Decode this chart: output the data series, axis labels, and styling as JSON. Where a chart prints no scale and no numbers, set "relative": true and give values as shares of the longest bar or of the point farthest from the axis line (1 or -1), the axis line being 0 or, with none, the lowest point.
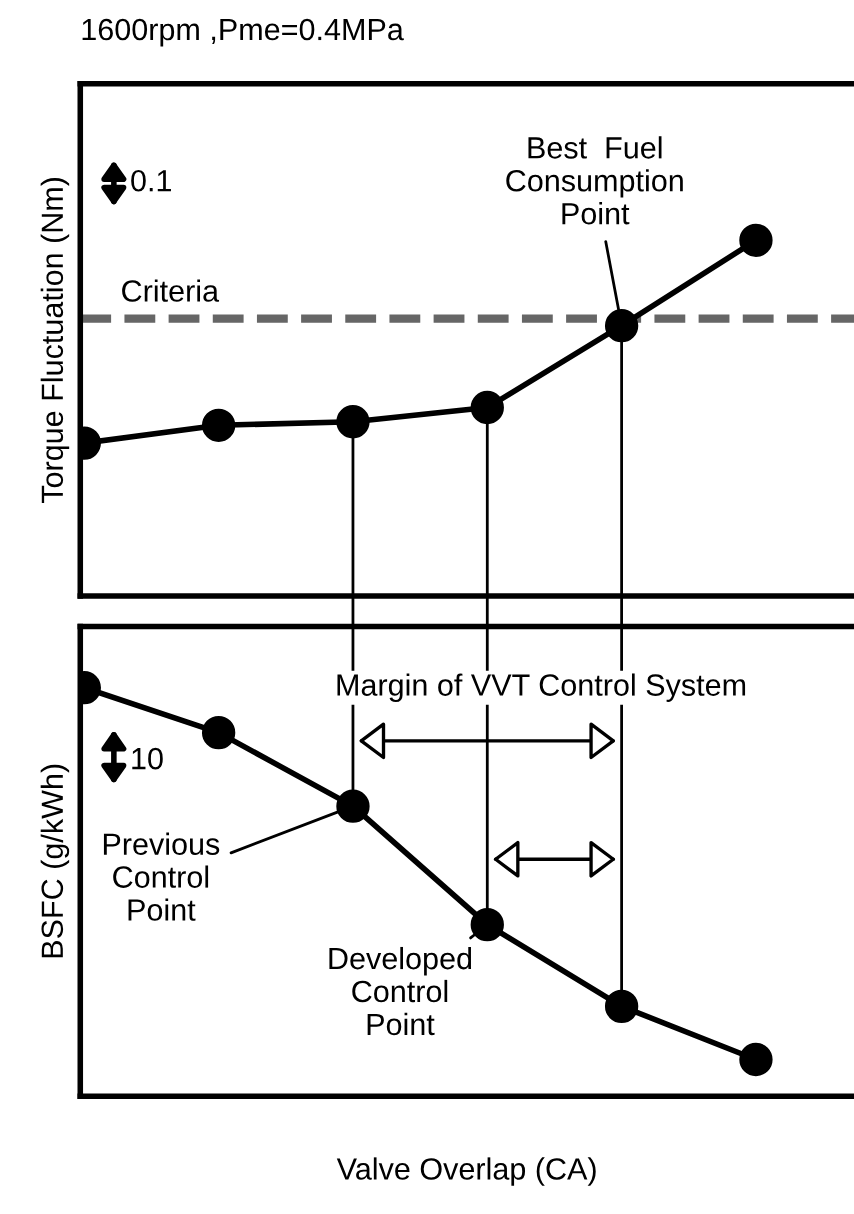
{
  "chart_data": [
    {
      "type": "line",
      "title": "1600rpm ,Pme=0.4MPa",
      "ylabel": "Torque Fluctuation (Nm)",
      "relative": true,
      "categories": [
        null,
        null,
        null,
        null,
        null,
        null
      ],
      "series": [
        {
          "color": "#000000",
          "values": [
            0.43,
            0.48,
            0.49,
            0.53,
            0.76,
            1.0
          ]
        }
      ],
      "ref_lines": [
        {
          "axis": "y",
          "value": 0.78,
          "color": "#666666",
          "line_style": "dashed"
        }
      ],
      "annotations": [
        "0.1",
        "Criteria",
        "Best  Fuel\nConsumption\nPoint"
      ],
      "marker": "circle",
      "line_style": "solid",
      "grid": false,
      "legend": false,
      "tick_labels": false
    },
    {
      "type": "line",
      "xlabel": "Valve Overlap (CA)",
      "ylabel": "BSFC (g/kWh)",
      "relative": true,
      "categories": [
        null,
        null,
        null,
        null,
        null,
        null
      ],
      "series": [
        {
          "color": "#000000",
          "values": [
            1.0,
            0.89,
            0.71,
            0.42,
            0.22,
            0.09
          ]
        }
      ],
      "annotations": [
        "10",
        "Margin of VVT Control System",
        "Previous\nControl\nPoint",
        "Developed\nControl\nPoint"
      ],
      "marker": "circle",
      "line_style": "solid",
      "grid": false,
      "legend": false,
      "tick_labels": false
    }
  ]
}
